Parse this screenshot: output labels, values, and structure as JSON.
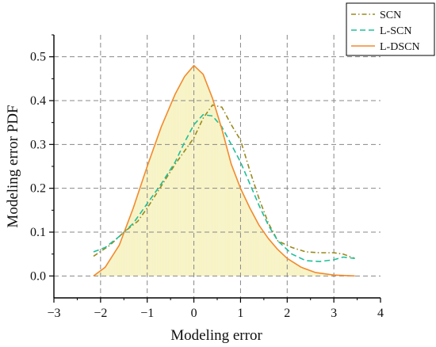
{
  "chart_data": {
    "type": "line",
    "title": "",
    "xlabel": "Modeling error",
    "ylabel": "Modeling error PDF",
    "xlim": [
      -3,
      4
    ],
    "ylim": [
      -0.05,
      0.55
    ],
    "x_ticks": [
      "−3",
      "−2",
      "−1",
      "0",
      "1",
      "2",
      "3",
      "4"
    ],
    "y_ticks": [
      "0.0",
      "0.1",
      "0.2",
      "0.3",
      "0.4",
      "0.5"
    ],
    "grid": "dashed",
    "legend_position": "top-right",
    "histogram_fill": "#f7f3c4",
    "series": [
      {
        "name": "SCN",
        "style": "dash-dot",
        "color": "#9a8a1e",
        "points": [
          [
            -2.15,
            0.045
          ],
          [
            -1.8,
            0.07
          ],
          [
            -1.5,
            0.1
          ],
          [
            -1.2,
            0.125
          ],
          [
            -1.0,
            0.155
          ],
          [
            -0.7,
            0.205
          ],
          [
            -0.4,
            0.255
          ],
          [
            -0.2,
            0.285
          ],
          [
            0.0,
            0.315
          ],
          [
            0.2,
            0.36
          ],
          [
            0.4,
            0.39
          ],
          [
            0.6,
            0.385
          ],
          [
            0.8,
            0.345
          ],
          [
            1.0,
            0.31
          ],
          [
            1.2,
            0.24
          ],
          [
            1.4,
            0.175
          ],
          [
            1.6,
            0.12
          ],
          [
            1.8,
            0.08
          ],
          [
            2.1,
            0.065
          ],
          [
            2.4,
            0.055
          ],
          [
            2.7,
            0.053
          ],
          [
            3.0,
            0.053
          ],
          [
            3.2,
            0.05
          ],
          [
            3.45,
            0.04
          ]
        ]
      },
      {
        "name": "L-SCN",
        "style": "dashed",
        "color": "#1fbf9a",
        "points": [
          [
            -2.15,
            0.055
          ],
          [
            -1.9,
            0.065
          ],
          [
            -1.6,
            0.09
          ],
          [
            -1.3,
            0.12
          ],
          [
            -1.0,
            0.165
          ],
          [
            -0.7,
            0.21
          ],
          [
            -0.4,
            0.26
          ],
          [
            -0.2,
            0.305
          ],
          [
            0.0,
            0.345
          ],
          [
            0.2,
            0.368
          ],
          [
            0.4,
            0.365
          ],
          [
            0.6,
            0.34
          ],
          [
            0.8,
            0.3
          ],
          [
            1.0,
            0.26
          ],
          [
            1.2,
            0.21
          ],
          [
            1.4,
            0.16
          ],
          [
            1.6,
            0.115
          ],
          [
            1.8,
            0.08
          ],
          [
            2.1,
            0.05
          ],
          [
            2.4,
            0.035
          ],
          [
            2.7,
            0.033
          ],
          [
            3.0,
            0.037
          ],
          [
            3.2,
            0.043
          ],
          [
            3.45,
            0.04
          ]
        ]
      },
      {
        "name": "L-DSCN",
        "style": "solid",
        "color": "#f28a2e",
        "points": [
          [
            -2.15,
            0.0
          ],
          [
            -1.9,
            0.02
          ],
          [
            -1.6,
            0.07
          ],
          [
            -1.3,
            0.155
          ],
          [
            -1.0,
            0.25
          ],
          [
            -0.7,
            0.34
          ],
          [
            -0.4,
            0.415
          ],
          [
            -0.2,
            0.455
          ],
          [
            0.0,
            0.48
          ],
          [
            0.2,
            0.46
          ],
          [
            0.4,
            0.405
          ],
          [
            0.6,
            0.335
          ],
          [
            0.8,
            0.255
          ],
          [
            1.0,
            0.2
          ],
          [
            1.2,
            0.155
          ],
          [
            1.4,
            0.115
          ],
          [
            1.6,
            0.085
          ],
          [
            1.8,
            0.06
          ],
          [
            2.0,
            0.04
          ],
          [
            2.3,
            0.02
          ],
          [
            2.6,
            0.008
          ],
          [
            3.0,
            0.002
          ],
          [
            3.45,
            0.0
          ]
        ]
      }
    ]
  }
}
